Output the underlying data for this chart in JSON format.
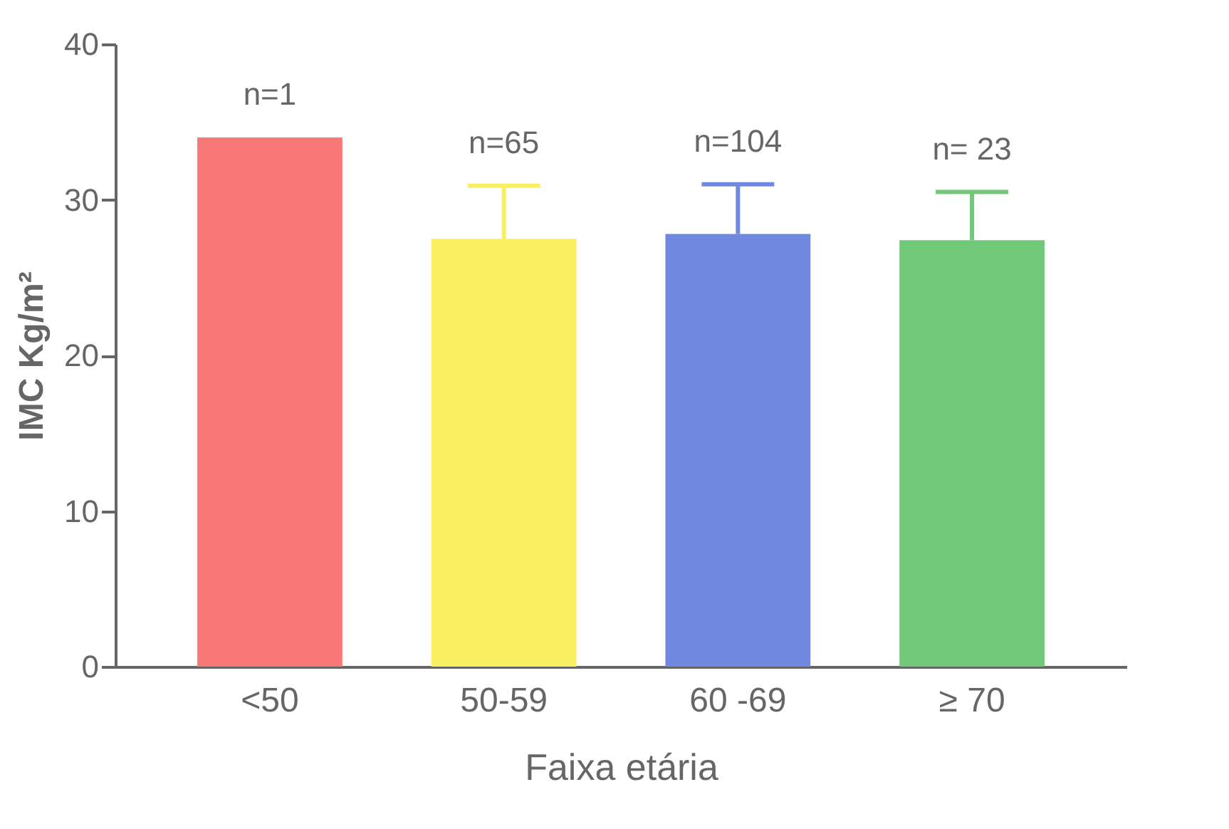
{
  "chart_data": {
    "type": "bar",
    "xlabel": "Faixa etária",
    "ylabel": "IMC Kg/m²",
    "categories": [
      "<50",
      "50-59",
      "60 -69",
      "≥ 70"
    ],
    "values": [
      34.0,
      27.5,
      27.8,
      27.4
    ],
    "colors": [
      "#f87878",
      "#f8f060",
      "#7088e0",
      "#70c878"
    ],
    "errors": [
      null,
      [
        27.5,
        30.9
      ],
      [
        27.8,
        31.0
      ],
      [
        27.4,
        30.5
      ]
    ],
    "annotations": [
      "n=1",
      "n=65",
      "n=104",
      "n= 23"
    ],
    "ylim": [
      0,
      40
    ],
    "yticks": [
      0,
      10,
      20,
      30,
      40
    ],
    "grid": false
  }
}
